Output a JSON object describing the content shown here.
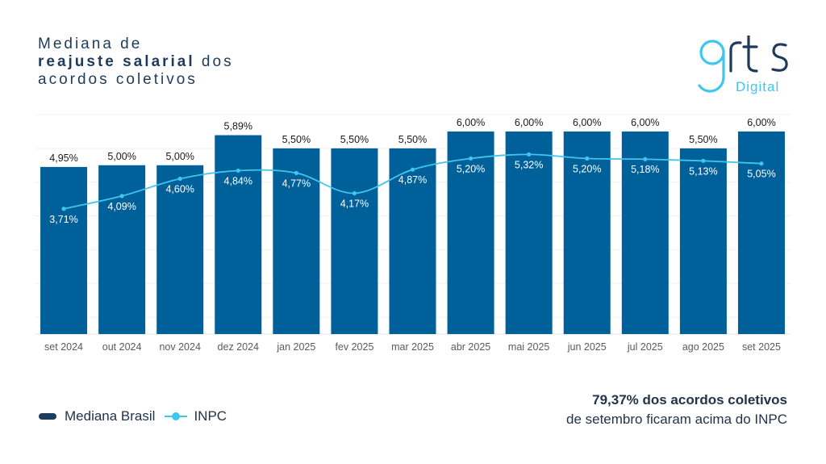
{
  "title": {
    "line1": "Mediana de",
    "line2_bold": "reajuste salarial",
    "line2_rest": " dos",
    "line3": "acordos coletivos"
  },
  "logo": {
    "main": "grts",
    "sub": "Digital"
  },
  "colors": {
    "bar": "#00609a",
    "line": "#3ec6ee",
    "title": "#1f3a5a",
    "legend_bar": "#1c3d5e"
  },
  "chart_data": {
    "type": "bar",
    "categories": [
      "set 2024",
      "out 2024",
      "nov 2024",
      "dez 2024",
      "jan 2025",
      "fev 2025",
      "mar 2025",
      "abr 2025",
      "mai 2025",
      "jun 2025",
      "jul 2025",
      "ago 2025",
      "set 2025"
    ],
    "series": [
      {
        "name": "Mediana Brasil",
        "kind": "bar",
        "values": [
          4.95,
          5.0,
          5.0,
          5.89,
          5.5,
          5.5,
          5.5,
          6.0,
          6.0,
          6.0,
          6.0,
          5.5,
          6.0
        ],
        "labels": [
          "4,95%",
          "5,00%",
          "5,00%",
          "5,89%",
          "5,50%",
          "5,50%",
          "5,50%",
          "6,00%",
          "6,00%",
          "6,00%",
          "6,00%",
          "5,50%",
          "6,00%"
        ]
      },
      {
        "name": "INPC",
        "kind": "line",
        "values": [
          3.71,
          4.09,
          4.6,
          4.84,
          4.77,
          4.17,
          4.87,
          5.2,
          5.32,
          5.2,
          5.18,
          5.13,
          5.05
        ],
        "labels": [
          "3,71%",
          "4,09%",
          "4,60%",
          "4,84%",
          "4,77%",
          "4,17%",
          "4,87%",
          "5,20%",
          "5,32%",
          "5,20%",
          "5,18%",
          "5,13%",
          "5,05%"
        ]
      }
    ],
    "ylim": [
      0,
      6.5
    ],
    "grid": true,
    "legend_position": "bottom-left"
  },
  "legend": {
    "bar_label": "Mediana Brasil",
    "line_label": "INPC"
  },
  "note": {
    "line1": "79,37% dos acordos coletivos",
    "line2": "de setembro ficaram acima do INPC"
  }
}
